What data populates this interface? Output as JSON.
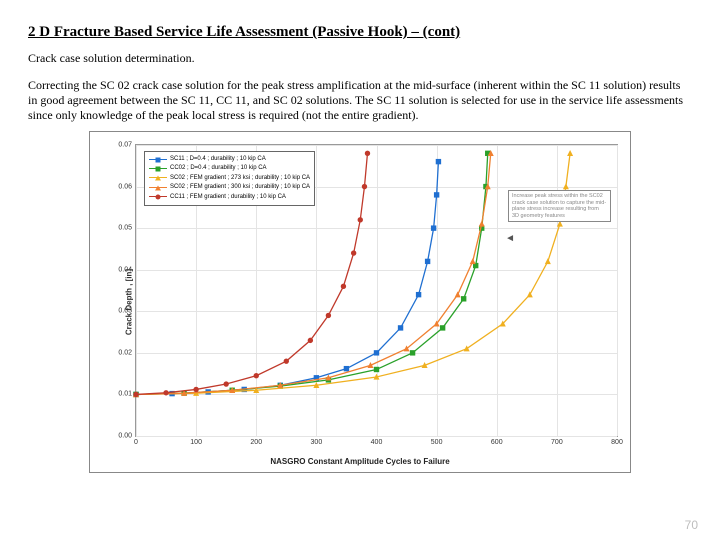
{
  "title": "2 D Fracture Based Service Life Assessment (Passive Hook) – (cont)",
  "subtitle": "Crack case solution determination.",
  "body": "Correcting the SC 02 crack case solution for the peak stress amplification at the mid-surface (inherent within the SC 11 solution) results in good agreement between the SC 11, CC 11, and SC 02 solutions.  The SC 11 solution is selected for use in the service life assessments since only knowledge of the peak local stress is required (not the entire gradient).",
  "page_number": "70",
  "chart": {
    "xlabel": "NASGRO Constant Amplitude Cycles to Failure",
    "ylabel": "Crack Depth , [in]",
    "xlim": [
      0,
      800
    ],
    "ylim": [
      0.0,
      0.07
    ],
    "xticks": [
      0,
      100,
      200,
      300,
      400,
      500,
      600,
      700,
      800
    ],
    "yticks": [
      0.0,
      0.01,
      0.02,
      0.03,
      0.04,
      0.05,
      0.06,
      0.07
    ],
    "grid_color": "#e4e4e4",
    "background_color": "#ffffff",
    "note": "Increase peak stress within the SC02 crack case solution to capture the mid-plane stress increase resulting from 3D geometry features",
    "legend": [
      {
        "label": "SC11 ; D=0.4 ; durability ; 10 kip CA",
        "color": "#1f6fd1",
        "marker": "square"
      },
      {
        "label": "CC02 ; D=0.4 ; durability ; 10 kip CA",
        "color": "#2aa12a",
        "marker": "square"
      },
      {
        "label": "SC02 ; FEM gradient ; 273 ksi ; durability ; 10 kip CA",
        "color": "#f0b020",
        "marker": "triangle"
      },
      {
        "label": "SC02 ; FEM gradient ; 300 ksi ; durability ; 10 kip CA",
        "color": "#f08030",
        "marker": "triangle"
      },
      {
        "label": "CC11 ; FEM gradient ; durability ; 10 kip CA",
        "color": "#c0392b",
        "marker": "circle"
      }
    ],
    "series": [
      {
        "color": "#1f6fd1",
        "marker": "square",
        "pts": [
          [
            0,
            0.01
          ],
          [
            60,
            0.0102
          ],
          [
            120,
            0.0106
          ],
          [
            180,
            0.0112
          ],
          [
            240,
            0.0122
          ],
          [
            300,
            0.014
          ],
          [
            350,
            0.0162
          ],
          [
            400,
            0.02
          ],
          [
            440,
            0.026
          ],
          [
            470,
            0.034
          ],
          [
            485,
            0.042
          ],
          [
            495,
            0.05
          ],
          [
            500,
            0.058
          ],
          [
            503,
            0.066
          ]
        ]
      },
      {
        "color": "#2aa12a",
        "marker": "square",
        "pts": [
          [
            0,
            0.01
          ],
          [
            80,
            0.0103
          ],
          [
            160,
            0.011
          ],
          [
            240,
            0.012
          ],
          [
            320,
            0.0135
          ],
          [
            400,
            0.016
          ],
          [
            460,
            0.02
          ],
          [
            510,
            0.026
          ],
          [
            545,
            0.033
          ],
          [
            565,
            0.041
          ],
          [
            575,
            0.05
          ],
          [
            582,
            0.06
          ],
          [
            585,
            0.068
          ]
        ]
      },
      {
        "color": "#f0b020",
        "marker": "triangle",
        "pts": [
          [
            0,
            0.01
          ],
          [
            100,
            0.0103
          ],
          [
            200,
            0.011
          ],
          [
            300,
            0.0122
          ],
          [
            400,
            0.0142
          ],
          [
            480,
            0.017
          ],
          [
            550,
            0.021
          ],
          [
            610,
            0.027
          ],
          [
            655,
            0.034
          ],
          [
            685,
            0.042
          ],
          [
            705,
            0.051
          ],
          [
            715,
            0.06
          ],
          [
            722,
            0.068
          ]
        ]
      },
      {
        "color": "#f08030",
        "marker": "triangle",
        "pts": [
          [
            0,
            0.01
          ],
          [
            80,
            0.0103
          ],
          [
            160,
            0.011
          ],
          [
            240,
            0.0122
          ],
          [
            320,
            0.014
          ],
          [
            390,
            0.017
          ],
          [
            450,
            0.021
          ],
          [
            500,
            0.027
          ],
          [
            535,
            0.034
          ],
          [
            560,
            0.042
          ],
          [
            575,
            0.051
          ],
          [
            585,
            0.06
          ],
          [
            590,
            0.068
          ]
        ]
      },
      {
        "color": "#c0392b",
        "marker": "circle",
        "pts": [
          [
            0,
            0.01
          ],
          [
            50,
            0.0104
          ],
          [
            100,
            0.0112
          ],
          [
            150,
            0.0125
          ],
          [
            200,
            0.0145
          ],
          [
            250,
            0.018
          ],
          [
            290,
            0.023
          ],
          [
            320,
            0.029
          ],
          [
            345,
            0.036
          ],
          [
            362,
            0.044
          ],
          [
            373,
            0.052
          ],
          [
            380,
            0.06
          ],
          [
            385,
            0.068
          ]
        ]
      }
    ]
  }
}
